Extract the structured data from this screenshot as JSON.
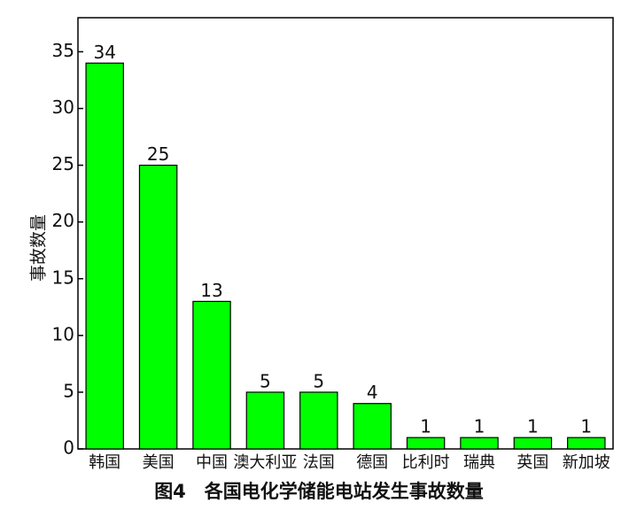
{
  "chart_data": {
    "type": "bar",
    "title": "图4　各国电化学储能电站发生事故数量",
    "y_label": "事故数量",
    "categories": [
      "韩国",
      "美国",
      "中国",
      "澳大利亚",
      "法国",
      "德国",
      "比利时",
      "瑞典",
      "英国",
      "新加坡"
    ],
    "values": [
      34,
      25,
      13,
      5,
      5,
      4,
      1,
      1,
      1,
      1
    ],
    "color": "#00ff00",
    "ylim": [
      0,
      38
    ],
    "yticks": [
      0,
      5,
      10,
      15,
      20,
      25,
      30,
      35
    ],
    "grid": false
  }
}
